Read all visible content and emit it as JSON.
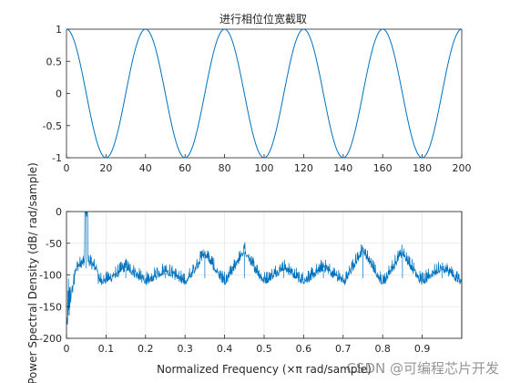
{
  "colors": {
    "line": "#0072bd",
    "axes": "#262626",
    "grid": "#e6e6e6",
    "background": "#ffffff"
  },
  "chart_data": [
    {
      "type": "line",
      "title": "进行相位位宽截取",
      "xlabel": "",
      "ylabel": "",
      "xlim": [
        0,
        200
      ],
      "ylim": [
        -1,
        1
      ],
      "grid": false,
      "xticks": [
        "0",
        "20",
        "40",
        "60",
        "80",
        "100",
        "120",
        "140",
        "160",
        "180",
        "200"
      ],
      "yticks": [
        "-1",
        "-0.5",
        "0",
        "0.5",
        "1"
      ],
      "series": [
        {
          "function": "cos(2*pi*(n-40)/40)",
          "period": 40,
          "amplitude": 1,
          "peaks_at": [
            0,
            40,
            80,
            120,
            160,
            200
          ],
          "troughs_at": [
            20,
            60,
            100,
            140,
            180
          ]
        }
      ]
    },
    {
      "type": "line",
      "title": "",
      "xlabel": "Normalized Frequency  (×π rad/sample)",
      "ylabel": "Power Spectral Density (dB/ rad/sample)",
      "xlim": [
        0,
        1
      ],
      "ylim": [
        -200,
        0
      ],
      "grid": true,
      "xticks": [
        "0",
        "0.1",
        "0.2",
        "0.3",
        "0.4",
        "0.5",
        "0.6",
        "0.7",
        "0.8",
        "0.9"
      ],
      "yticks": [
        "-200",
        "-150",
        "-100",
        "-50",
        "0"
      ],
      "series": [
        {
          "noise_floor_db": -105,
          "main_peak": {
            "x": 0.05,
            "y": 0
          },
          "spur_peaks": [
            {
              "x": 0.15,
              "y": -92
            },
            {
              "x": 0.25,
              "y": -97
            },
            {
              "x": 0.35,
              "y": -70
            },
            {
              "x": 0.45,
              "y": -65
            },
            {
              "x": 0.55,
              "y": -92
            },
            {
              "x": 0.65,
              "y": -92
            },
            {
              "x": 0.75,
              "y": -65
            },
            {
              "x": 0.85,
              "y": -68
            },
            {
              "x": 0.95,
              "y": -92
            }
          ],
          "low_freq_min_db": -200
        }
      ]
    }
  ],
  "watermark": "CSDN @可编程芯片开发"
}
